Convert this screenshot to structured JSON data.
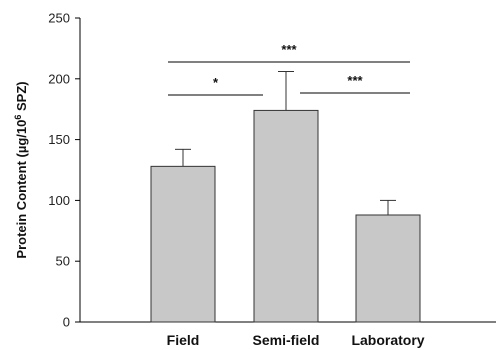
{
  "chart_data": {
    "type": "bar",
    "categories": [
      "Field",
      "Semi-field",
      "Laboratory"
    ],
    "values": [
      128,
      174,
      88
    ],
    "errors": [
      14,
      32,
      12
    ],
    "ylabel_main": "Protein Content (µg/10",
    "ylabel_sup": "6",
    "ylabel_tail": " SPZ)",
    "ylim": [
      0,
      250
    ],
    "yticks": [
      0,
      50,
      100,
      150,
      200,
      250
    ],
    "bar_color": "#c8c8c8",
    "significance": [
      {
        "from": "Field",
        "to": "Laboratory",
        "label": "***"
      },
      {
        "from": "Field",
        "to": "Semi-field",
        "label": "*"
      },
      {
        "from": "Semi-field",
        "to": "Laboratory",
        "label": "***"
      }
    ]
  }
}
